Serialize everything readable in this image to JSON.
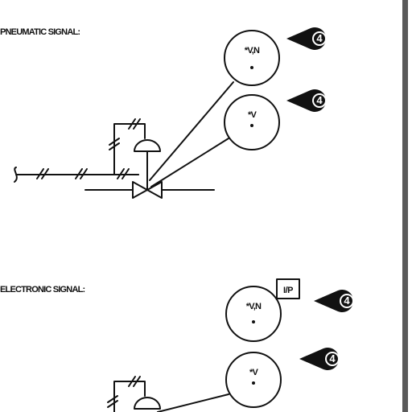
{
  "sections": {
    "pneumatic": {
      "title": "PNEUMATIC SIGNAL:",
      "bubble_top": "*V,N",
      "bubble_bottom": "*V",
      "tag_top": "4",
      "tag_bottom": "4"
    },
    "electronic": {
      "title": "ELECTRONIC SIGNAL:",
      "bubble_top": "*V,N",
      "bubble_bottom": "*V",
      "converter": "I/P",
      "tag_top": "4",
      "tag_bottom": "4"
    }
  },
  "colors": {
    "line": "#111111",
    "background": "#ffffff",
    "frame": "#5a5a5a"
  }
}
